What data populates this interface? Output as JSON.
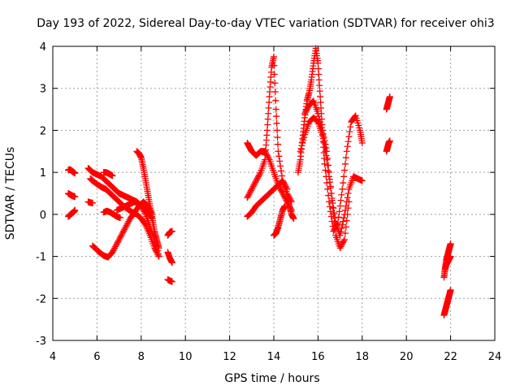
{
  "chart_data": {
    "type": "scatter",
    "title": "Day 193 of 2022, Sidereal Day-to-day VTEC variation (SDTVAR) for receiver ohi3",
    "xlabel": "GPS time / hours",
    "ylabel": "SDTVAR / TECUs",
    "xlim": [
      4,
      24
    ],
    "ylim": [
      -3,
      4
    ],
    "xticks": [
      "4",
      "6",
      "8",
      "10",
      "12",
      "14",
      "16",
      "18",
      "20",
      "22",
      "24"
    ],
    "yticks": [
      "-3",
      "-2",
      "-1",
      "0",
      "1",
      "2",
      "3",
      "4"
    ],
    "grid": true,
    "marker": "+",
    "color": "#ff0000",
    "series": [
      {
        "name": "s1",
        "x": [
          4.7,
          4.75,
          4.8,
          4.85,
          4.9,
          4.95,
          5.0
        ],
        "y": [
          1.05,
          1.07,
          1.06,
          1.04,
          1.02,
          1.0,
          0.98
        ]
      },
      {
        "name": "s2",
        "x": [
          4.7,
          4.75,
          4.8,
          4.85,
          4.9,
          4.95,
          5.0
        ],
        "y": [
          0.5,
          0.48,
          0.47,
          0.45,
          0.44,
          0.43,
          0.42
        ]
      },
      {
        "name": "s3",
        "x": [
          4.7,
          4.75,
          4.8,
          4.85,
          4.9,
          4.95,
          5.0
        ],
        "y": [
          -0.05,
          -0.03,
          0.0,
          0.02,
          0.04,
          0.06,
          0.1
        ]
      },
      {
        "name": "s4",
        "x": [
          5.6,
          5.7,
          5.8,
          6.0,
          6.2,
          6.4,
          6.6,
          6.8,
          7.0,
          7.2,
          7.4,
          7.6,
          7.8,
          8.0,
          8.2,
          8.4,
          8.6,
          8.8
        ],
        "y": [
          1.1,
          1.05,
          1.0,
          0.95,
          0.9,
          0.8,
          0.7,
          0.6,
          0.5,
          0.45,
          0.4,
          0.35,
          0.3,
          0.2,
          0.0,
          -0.3,
          -0.6,
          -1.0
        ]
      },
      {
        "name": "s5",
        "x": [
          5.7,
          5.8,
          6.0,
          6.2,
          6.4,
          6.6,
          6.8,
          7.0,
          7.2,
          7.4,
          7.6,
          7.8,
          8.0,
          8.2,
          8.4,
          8.6,
          8.8
        ],
        "y": [
          0.85,
          0.8,
          0.72,
          0.65,
          0.6,
          0.5,
          0.4,
          0.3,
          0.2,
          0.12,
          0.05,
          0.0,
          -0.1,
          -0.25,
          -0.5,
          -0.8,
          -1.0
        ]
      },
      {
        "name": "s6",
        "x": [
          5.8,
          5.95,
          6.1,
          6.3,
          6.5,
          6.7,
          6.9,
          7.1,
          7.3,
          7.5,
          7.7,
          7.9,
          8.1,
          8.3,
          8.5
        ],
        "y": [
          -0.75,
          -0.82,
          -0.9,
          -0.98,
          -1.02,
          -0.9,
          -0.7,
          -0.5,
          -0.3,
          -0.1,
          0.05,
          0.2,
          0.3,
          0.2,
          0.0
        ]
      },
      {
        "name": "s7",
        "x": [
          6.3,
          6.45,
          6.6,
          6.75,
          6.9,
          7.05
        ],
        "y": [
          0.05,
          0.08,
          0.05,
          0.0,
          -0.05,
          -0.08
        ]
      },
      {
        "name": "s8",
        "x": [
          6.3,
          6.4,
          6.5,
          6.6,
          6.7
        ],
        "y": [
          1.0,
          1.0,
          0.98,
          0.95,
          0.92
        ]
      },
      {
        "name": "s9",
        "x": [
          5.6,
          5.7,
          5.8
        ],
        "y": [
          0.3,
          0.28,
          0.27
        ]
      },
      {
        "name": "s10",
        "x": [
          6.9,
          7.1,
          7.3,
          7.5,
          7.7,
          7.9,
          8.1,
          8.3,
          8.5
        ],
        "y": [
          0.1,
          0.15,
          0.2,
          0.25,
          0.3,
          0.25,
          0.15,
          0.05,
          -0.1
        ]
      },
      {
        "name": "s11",
        "x": [
          7.8,
          7.9,
          8.0,
          8.1,
          8.2,
          8.3,
          8.4,
          8.5,
          8.6,
          8.7,
          8.8
        ],
        "y": [
          1.5,
          1.45,
          1.35,
          1.1,
          0.8,
          0.5,
          0.2,
          -0.1,
          -0.4,
          -0.6,
          -0.8
        ]
      },
      {
        "name": "s12",
        "x": [
          9.2,
          9.3,
          9.4
        ],
        "y": [
          -0.5,
          -0.42,
          -0.4
        ]
      },
      {
        "name": "s13",
        "x": [
          9.2,
          9.3,
          9.4
        ],
        "y": [
          -0.9,
          -1.05,
          -1.15
        ]
      },
      {
        "name": "s14",
        "x": [
          9.2,
          9.3,
          9.4
        ],
        "y": [
          -1.55,
          -1.58,
          -1.6
        ]
      },
      {
        "name": "s15",
        "x": [
          12.8,
          12.9,
          13.0,
          13.2,
          13.4,
          13.6,
          13.8,
          14.0,
          14.2,
          14.4,
          14.6,
          14.8
        ],
        "y": [
          1.7,
          1.6,
          1.5,
          1.4,
          1.5,
          1.5,
          1.3,
          1.0,
          0.7,
          0.5,
          0.3,
          0.1
        ]
      },
      {
        "name": "s16",
        "x": [
          12.8,
          13.0,
          13.2,
          13.4,
          13.6,
          13.7,
          13.8,
          13.9,
          14.0,
          14.1,
          14.2,
          14.4,
          14.6,
          14.8
        ],
        "y": [
          0.4,
          0.6,
          0.8,
          1.0,
          1.3,
          2.0,
          2.8,
          3.5,
          3.75,
          2.5,
          1.5,
          0.8,
          0.5,
          0.3
        ]
      },
      {
        "name": "s17",
        "x": [
          12.8,
          13.0,
          13.2,
          13.4,
          13.6,
          13.8,
          14.0,
          14.2,
          14.4,
          14.6
        ],
        "y": [
          -0.05,
          0.05,
          0.2,
          0.3,
          0.4,
          0.5,
          0.6,
          0.7,
          0.8,
          0.6
        ]
      },
      {
        "name": "s18",
        "x": [
          14.0,
          14.1,
          14.2,
          14.3,
          14.4,
          14.5
        ],
        "y": [
          -0.5,
          -0.45,
          -0.3,
          -0.1,
          0.1,
          0.2
        ]
      },
      {
        "name": "s19",
        "x": [
          14.6,
          14.7,
          14.8,
          14.9
        ],
        "y": [
          0.4,
          0.2,
          0.0,
          -0.1
        ]
      },
      {
        "name": "s20",
        "x": [
          15.1,
          15.2,
          15.3,
          15.4,
          15.5,
          15.6,
          15.7,
          15.8,
          15.9,
          16.0,
          16.1,
          16.2,
          16.3,
          16.5,
          16.7,
          16.9,
          17.1,
          17.3,
          17.5,
          17.7,
          17.9,
          18.0
        ],
        "y": [
          1.0,
          1.3,
          1.8,
          2.3,
          2.7,
          2.9,
          3.2,
          3.6,
          3.95,
          3.6,
          2.8,
          2.0,
          1.2,
          0.3,
          -0.4,
          -0.2,
          0.6,
          1.5,
          2.2,
          2.35,
          2.0,
          1.7
        ]
      },
      {
        "name": "s21",
        "x": [
          15.2,
          15.4,
          15.6,
          15.8,
          16.0,
          16.2,
          16.4,
          16.6,
          16.8,
          17.0,
          17.2,
          17.4,
          17.6,
          17.8,
          18.0
        ],
        "y": [
          1.5,
          1.9,
          2.2,
          2.3,
          2.2,
          1.9,
          1.3,
          0.5,
          -0.2,
          -0.5,
          0.0,
          0.6,
          0.9,
          0.85,
          0.8
        ]
      },
      {
        "name": "s22",
        "x": [
          15.4,
          15.6,
          15.8,
          16.0,
          16.2,
          16.4,
          16.6,
          16.8,
          17.0,
          17.2,
          17.4
        ],
        "y": [
          2.4,
          2.6,
          2.7,
          2.4,
          2.0,
          1.5,
          0.5,
          -0.5,
          -0.8,
          -0.6,
          0.3
        ]
      },
      {
        "name": "s23",
        "x": [
          19.1,
          19.15,
          19.2,
          19.25
        ],
        "y": [
          2.5,
          2.6,
          2.7,
          2.8
        ]
      },
      {
        "name": "s24",
        "x": [
          19.1,
          19.15,
          19.2,
          19.25
        ],
        "y": [
          1.5,
          1.6,
          1.7,
          1.75
        ]
      },
      {
        "name": "s25",
        "x": [
          21.7,
          21.75,
          21.8,
          21.85,
          21.9,
          21.95,
          22.0
        ],
        "y": [
          -1.5,
          -1.3,
          -1.1,
          -1.0,
          -0.9,
          -0.8,
          -0.7
        ]
      },
      {
        "name": "s26",
        "x": [
          21.75,
          21.8,
          21.85,
          21.9,
          21.95,
          22.0
        ],
        "y": [
          -1.3,
          -1.2,
          -1.15,
          -1.1,
          -1.05,
          -1.0
        ]
      },
      {
        "name": "s27",
        "x": [
          21.7,
          21.75,
          21.8,
          21.85,
          21.9,
          21.95,
          22.0
        ],
        "y": [
          -2.4,
          -2.3,
          -2.2,
          -2.1,
          -2.0,
          -1.9,
          -1.8
        ]
      }
    ]
  }
}
